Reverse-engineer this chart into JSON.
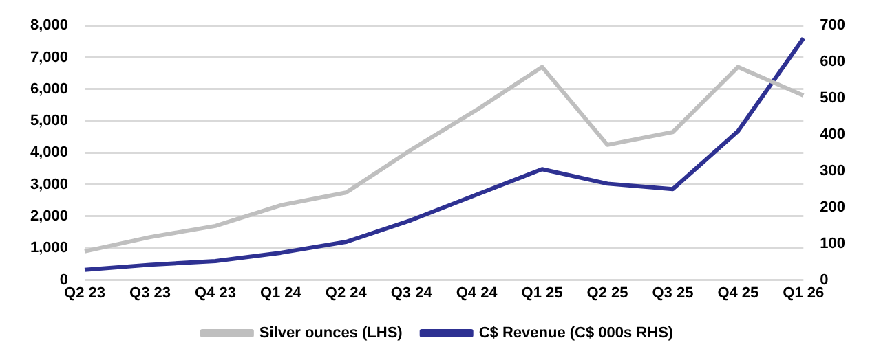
{
  "chart_data": {
    "type": "line",
    "categories": [
      "Q2 23",
      "Q3 23",
      "Q4 23",
      "Q1 24",
      "Q2 24",
      "Q3 24",
      "Q4 24",
      "Q1 25",
      "Q2 25",
      "Q3 25",
      "Q4 25",
      "Q1 26"
    ],
    "series": [
      {
        "name": "Silver ounces (LHS)",
        "color": "#bfbfbf",
        "values": [
          900,
          1350,
          1700,
          2350,
          2750,
          4100,
          5350,
          6700,
          4250,
          4650,
          6700,
          5800
        ]
      },
      {
        "name": "C$ Revenue (C$ 000s RHS)",
        "color": "#2e3192",
        "axis": "y2",
        "values": [
          28,
          42,
          52,
          75,
          105,
          165,
          235,
          305,
          265,
          250,
          410,
          665
        ]
      }
    ],
    "ylim": [
      0,
      8000
    ],
    "yticks": [
      0,
      {
        "value": 1000,
        "label": "1,000"
      },
      {
        "value": 2000,
        "label": "2,000"
      },
      {
        "value": 3000,
        "label": "3,000"
      },
      {
        "value": 4000,
        "label": "4,000"
      },
      {
        "value": 5000,
        "label": "5,000"
      },
      {
        "value": 6000,
        "label": "6,000"
      },
      {
        "value": 7000,
        "label": "7,000"
      },
      {
        "value": 8000,
        "label": "8,000"
      }
    ],
    "y2lim": [
      0,
      700
    ],
    "y2ticks": [
      0,
      100,
      200,
      300,
      400,
      500,
      600,
      700
    ],
    "grid": "y",
    "legend": "bottom",
    "marker": "none",
    "line_style": "solid"
  }
}
